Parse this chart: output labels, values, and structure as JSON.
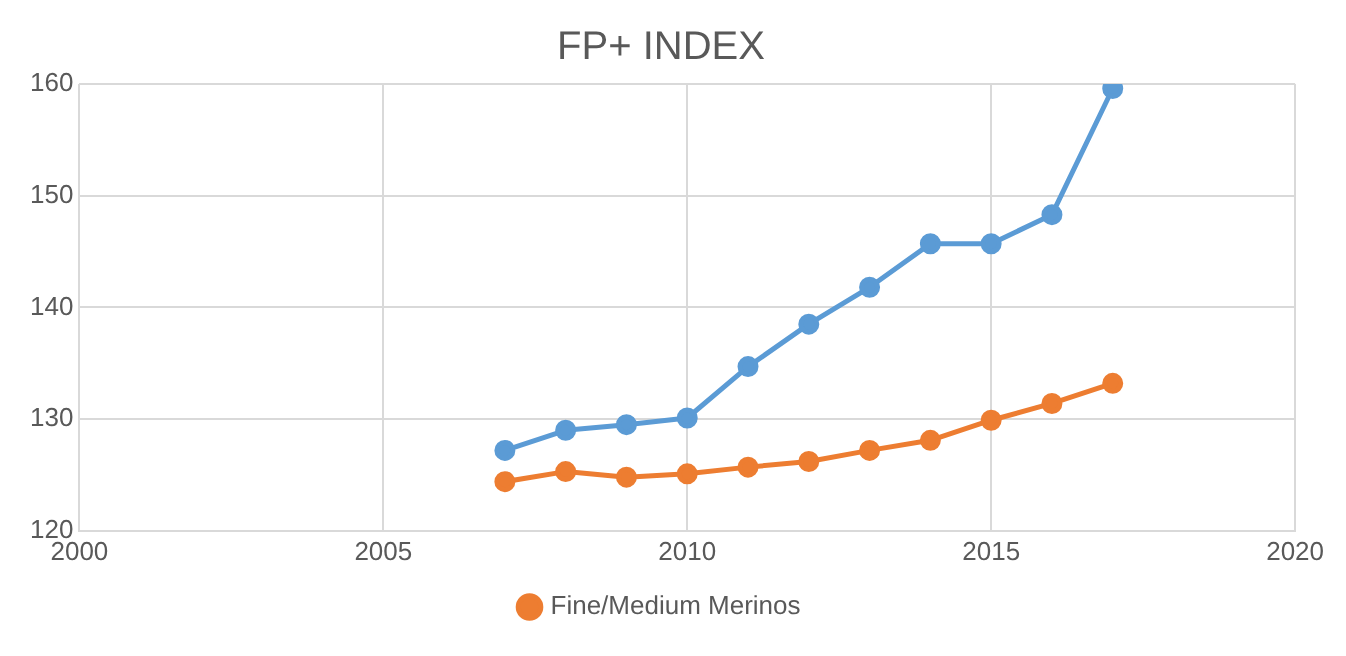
{
  "chart_data": {
    "type": "line",
    "title": "FP+ INDEX",
    "x": [
      2007,
      2008,
      2009,
      2010,
      2011,
      2012,
      2013,
      2014,
      2015,
      2016,
      2017
    ],
    "series": [
      {
        "color": "#5b9bd5",
        "values": [
          127.2,
          129.0,
          129.5,
          130.1,
          134.7,
          138.5,
          141.8,
          145.7,
          145.7,
          148.3,
          159.6
        ]
      },
      {
        "name": "Fine/Medium Merinos",
        "color": "#ed7d31",
        "values": [
          124.4,
          125.3,
          124.8,
          125.1,
          125.7,
          126.2,
          127.2,
          128.1,
          129.9,
          131.4,
          133.2
        ]
      }
    ],
    "xlim": [
      2000,
      2020
    ],
    "xticks": [
      2000,
      2005,
      2010,
      2015,
      2020
    ],
    "ylim": [
      120,
      160
    ],
    "yticks": [
      120,
      130,
      140,
      150,
      160
    ],
    "grid": true,
    "legend": "bottom",
    "marker": "circle",
    "line_style": "solid"
  }
}
